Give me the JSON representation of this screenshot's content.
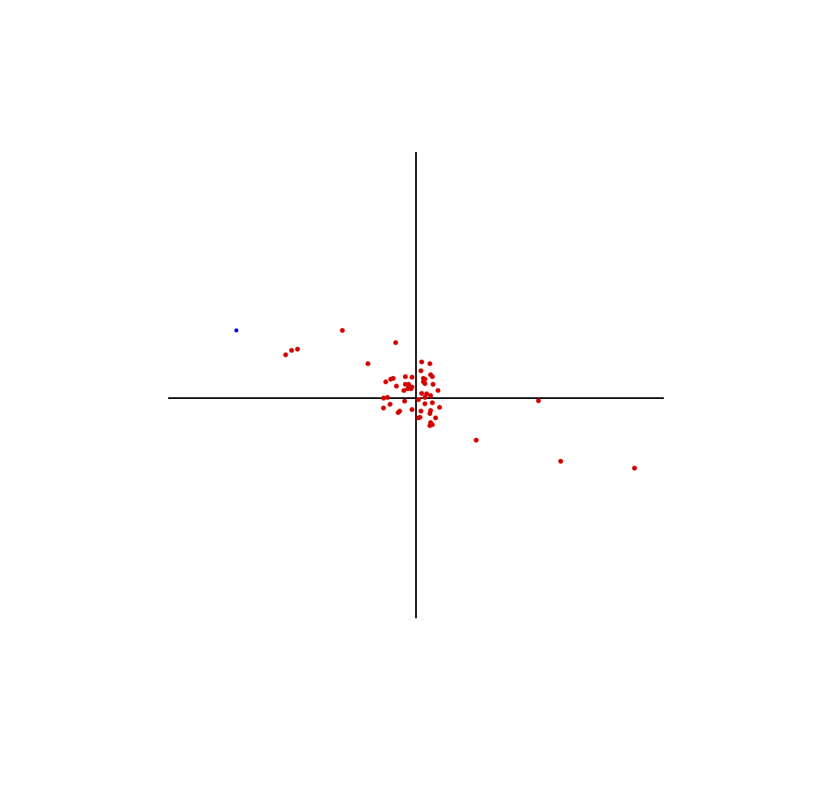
{
  "chart_data": {
    "type": "scatter",
    "title": "",
    "xlabel": "",
    "ylabel": "",
    "xlim": [
      -10,
      10
    ],
    "ylim": [
      -10,
      10
    ],
    "grid": false,
    "axes_style": "crosshair-through-origin",
    "colors": {
      "axis": "#000000",
      "primary": "#d40000",
      "highlight": "#0000dd"
    },
    "series": [
      {
        "color": "#d40000",
        "points": [
          [
            -2.97,
            2.75
          ],
          [
            -0.82,
            2.25
          ],
          [
            -1.94,
            1.4
          ],
          [
            -5.02,
            1.94
          ],
          [
            -5.26,
            1.76
          ],
          [
            -4.78,
            1.99
          ],
          [
            4.94,
            -0.12
          ],
          [
            2.43,
            -1.91
          ],
          [
            5.84,
            -2.87
          ],
          [
            8.82,
            -3.18
          ],
          [
            0.23,
            1.47
          ],
          [
            0.56,
            1.4
          ],
          [
            0.2,
            1.11
          ],
          [
            0.59,
            0.95
          ],
          [
            0.66,
            0.87
          ],
          [
            0.3,
            0.8
          ],
          [
            0.36,
            0.77
          ],
          [
            0.3,
            0.66
          ],
          [
            0.69,
            0.56
          ],
          [
            0.36,
            0.59
          ],
          [
            -0.43,
            0.87
          ],
          [
            -0.16,
            0.85
          ],
          [
            -0.92,
            0.8
          ],
          [
            -1.02,
            0.77
          ],
          [
            -0.43,
            0.56
          ],
          [
            -0.79,
            0.49
          ],
          [
            -0.3,
            0.56
          ],
          [
            -0.16,
            0.45
          ],
          [
            -0.2,
            0.38
          ],
          [
            -0.33,
            0.38
          ],
          [
            -1.22,
            0.66
          ],
          [
            0.89,
            0.31
          ],
          [
            0.23,
            0.19
          ],
          [
            0.43,
            0.17
          ],
          [
            0.59,
            0.1
          ],
          [
            0.36,
            0.03
          ],
          [
            -0.49,
            0.31
          ],
          [
            -1.15,
            0.03
          ],
          [
            -1.31,
            0.0
          ],
          [
            0.1,
            -0.07
          ],
          [
            0.66,
            -0.21
          ],
          [
            0.36,
            -0.26
          ],
          [
            -0.46,
            -0.14
          ],
          [
            -1.05,
            -0.28
          ],
          [
            0.95,
            -0.42
          ],
          [
            -1.31,
            -0.45
          ],
          [
            -0.16,
            -0.52
          ],
          [
            0.59,
            -0.56
          ],
          [
            -0.66,
            -0.59
          ],
          [
            -0.72,
            -0.66
          ],
          [
            0.2,
            -0.59
          ],
          [
            0.56,
            -0.7
          ],
          [
            0.16,
            -0.87
          ],
          [
            0.1,
            -0.9
          ],
          [
            0.79,
            -0.9
          ],
          [
            0.59,
            -1.11
          ],
          [
            0.66,
            -1.21
          ],
          [
            0.56,
            -1.25
          ]
        ]
      },
      {
        "color": "#0000dd",
        "points": [
          [
            -7.25,
            2.75
          ]
        ]
      }
    ]
  }
}
